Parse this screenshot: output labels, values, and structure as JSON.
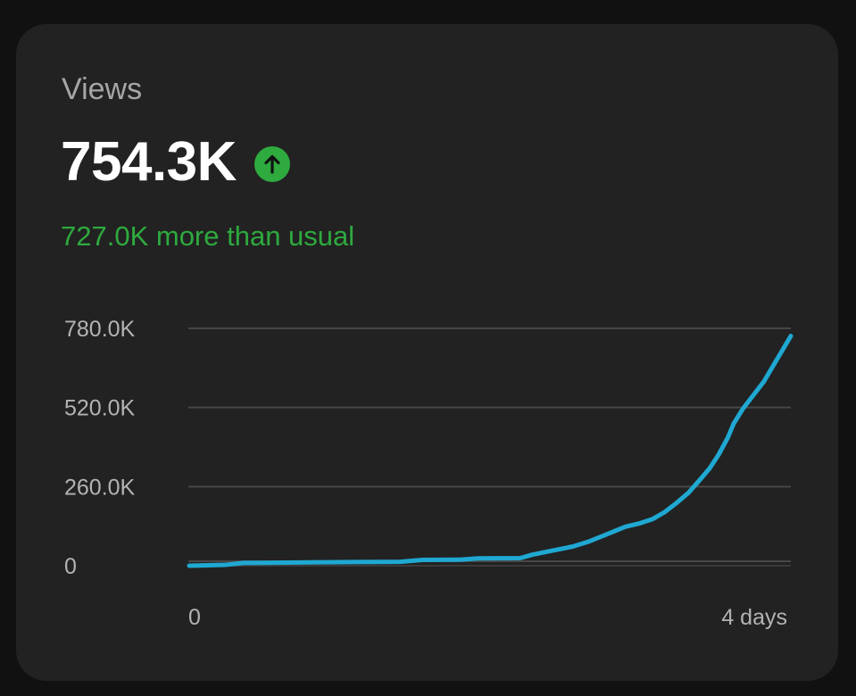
{
  "card": {
    "title": "Views",
    "value": "754.3K",
    "delta_text": "727.0K more than usual",
    "up_icon": "arrow-up-icon"
  },
  "colors": {
    "background": "#111111",
    "card": "#222222",
    "line": "#1fa8d2",
    "positive": "#2eaa3f",
    "grid": "#474747",
    "tick": "#b3b3b3"
  },
  "chart_data": {
    "type": "line",
    "title": "Views",
    "xlabel": "",
    "ylabel": "",
    "xlim": [
      0,
      4
    ],
    "ylim": [
      0,
      780000
    ],
    "yticks": [
      0,
      260000,
      520000,
      780000
    ],
    "ytick_labels": [
      "0",
      "260.0K",
      "520.0K",
      "780.0K"
    ],
    "xtick_labels": [
      {
        "x": 0,
        "label": "0"
      },
      {
        "x": 4,
        "label": "4 days"
      }
    ],
    "grid": true,
    "series": [
      {
        "name": "Views",
        "x": [
          0,
          0.12,
          0.24,
          0.36,
          0.5,
          0.8,
          1.1,
          1.4,
          1.55,
          1.8,
          1.92,
          2.2,
          2.28,
          2.4,
          2.55,
          2.66,
          2.8,
          2.9,
          3.0,
          3.08,
          3.16,
          3.24,
          3.32,
          3.4,
          3.46,
          3.52,
          3.58,
          3.62,
          3.68,
          3.75,
          3.82,
          3.88,
          3.94,
          4.0
        ],
        "values": [
          0,
          1500,
          3000,
          9000,
          9500,
          11000,
          12000,
          13000,
          19000,
          20000,
          24000,
          25000,
          36000,
          48000,
          63000,
          80000,
          108000,
          128000,
          140000,
          153000,
          176000,
          206000,
          240000,
          285000,
          320000,
          365000,
          420000,
          467000,
          515000,
          560000,
          605000,
          655000,
          705000,
          755000
        ]
      }
    ]
  }
}
